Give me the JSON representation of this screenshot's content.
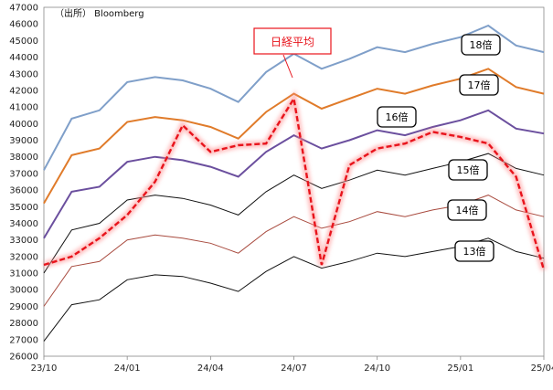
{
  "source_note": "（出所） Bloomberg",
  "chart_data": {
    "type": "line",
    "ylim": [
      26000,
      47000
    ],
    "yticks": [
      26000,
      27000,
      28000,
      29000,
      30000,
      31000,
      32000,
      33000,
      34000,
      35000,
      36000,
      37000,
      38000,
      39000,
      40000,
      41000,
      42000,
      43000,
      44000,
      45000,
      46000,
      47000
    ],
    "x": [
      "23/10",
      "23/11",
      "23/12",
      "24/01",
      "24/02",
      "24/03",
      "24/04",
      "24/05",
      "24/06",
      "24/07",
      "24/08",
      "24/09",
      "24/10",
      "24/11",
      "24/12",
      "25/01",
      "25/02",
      "25/03",
      "25/04"
    ],
    "xticks": [
      "23/10",
      "24/01",
      "24/04",
      "24/07",
      "24/10",
      "25/01",
      "25/04"
    ],
    "series": [
      {
        "name": "18倍",
        "color": "#7f9fc9",
        "values": [
          37200,
          40300,
          40800,
          42500,
          42800,
          42600,
          42100,
          41300,
          43100,
          44200,
          43300,
          43900,
          44600,
          44300,
          44800,
          45200,
          45900,
          44700,
          44300
        ]
      },
      {
        "name": "17倍",
        "color": "#e07b2a",
        "values": [
          35200,
          38100,
          38500,
          40100,
          40400,
          40200,
          39800,
          39100,
          40700,
          41800,
          40900,
          41500,
          42100,
          41800,
          42300,
          42700,
          43300,
          42200,
          41800
        ]
      },
      {
        "name": "16倍",
        "color": "#6b4f9e",
        "values": [
          33100,
          35900,
          36200,
          37700,
          38000,
          37800,
          37400,
          36800,
          38300,
          39300,
          38500,
          39000,
          39600,
          39300,
          39800,
          40200,
          40800,
          39700,
          39400
        ]
      },
      {
        "name": "15倍",
        "color": "#111111",
        "values": [
          31000,
          33600,
          34000,
          35400,
          35700,
          35500,
          35100,
          34500,
          35900,
          36900,
          36100,
          36600,
          37200,
          36900,
          37300,
          37700,
          38200,
          37300,
          36900
        ]
      },
      {
        "name": "14倍",
        "color": "#a84a3e",
        "values": [
          29000,
          31400,
          31700,
          33000,
          33300,
          33100,
          32800,
          32200,
          33500,
          34400,
          33700,
          34100,
          34700,
          34400,
          34800,
          35100,
          35700,
          34800,
          34400
        ]
      },
      {
        "name": "13倍",
        "color": "#111111",
        "values": [
          26900,
          29100,
          29400,
          30600,
          30900,
          30800,
          30400,
          29900,
          31100,
          32000,
          31300,
          31700,
          32200,
          32000,
          32300,
          32600,
          33100,
          32300,
          31900
        ]
      },
      {
        "name": "日経平均",
        "color": "#e8141c",
        "values": [
          31500,
          32000,
          33100,
          34500,
          36500,
          39900,
          38300,
          38700,
          38800,
          41500,
          31500,
          37500,
          38500,
          38800,
          39500,
          39200,
          38800,
          36800,
          31200
        ]
      }
    ]
  }
}
